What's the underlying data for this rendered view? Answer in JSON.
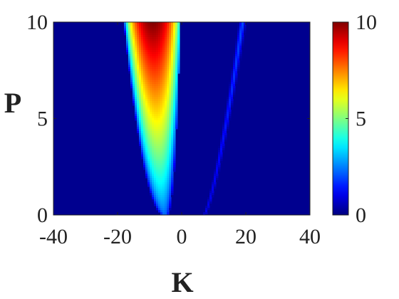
{
  "chart_data": {
    "type": "heatmap",
    "title": "",
    "xlabel": "K",
    "ylabel": "P",
    "xlim": [
      -40,
      40
    ],
    "ylim": [
      0,
      10
    ],
    "x_ticks": [
      "-40",
      "-20",
      "0",
      "20",
      "40"
    ],
    "y_ticks": [
      "0",
      "5",
      "10"
    ],
    "colormap": "jet",
    "colorbar": {
      "range": [
        0,
        10
      ],
      "ticks": [
        "0",
        "5",
        "10"
      ],
      "placement": "right"
    },
    "grid": false,
    "background_value": 0,
    "features": [
      {
        "name": "main-lobe",
        "description": "wide parabolic band of high values",
        "vertex": [
          -5,
          0
        ],
        "edges_at_top": [
          -18.5,
          -1.5
        ],
        "peak": {
          "x": -9,
          "y": 10,
          "value": 10
        }
      },
      {
        "name": "thin-branch",
        "description": "narrow low-intensity curve",
        "from": [
          7,
          0
        ],
        "to": [
          19,
          10
        ],
        "value": 2
      }
    ],
    "colors": {
      "low": "#00008f",
      "high": "#800000"
    }
  }
}
